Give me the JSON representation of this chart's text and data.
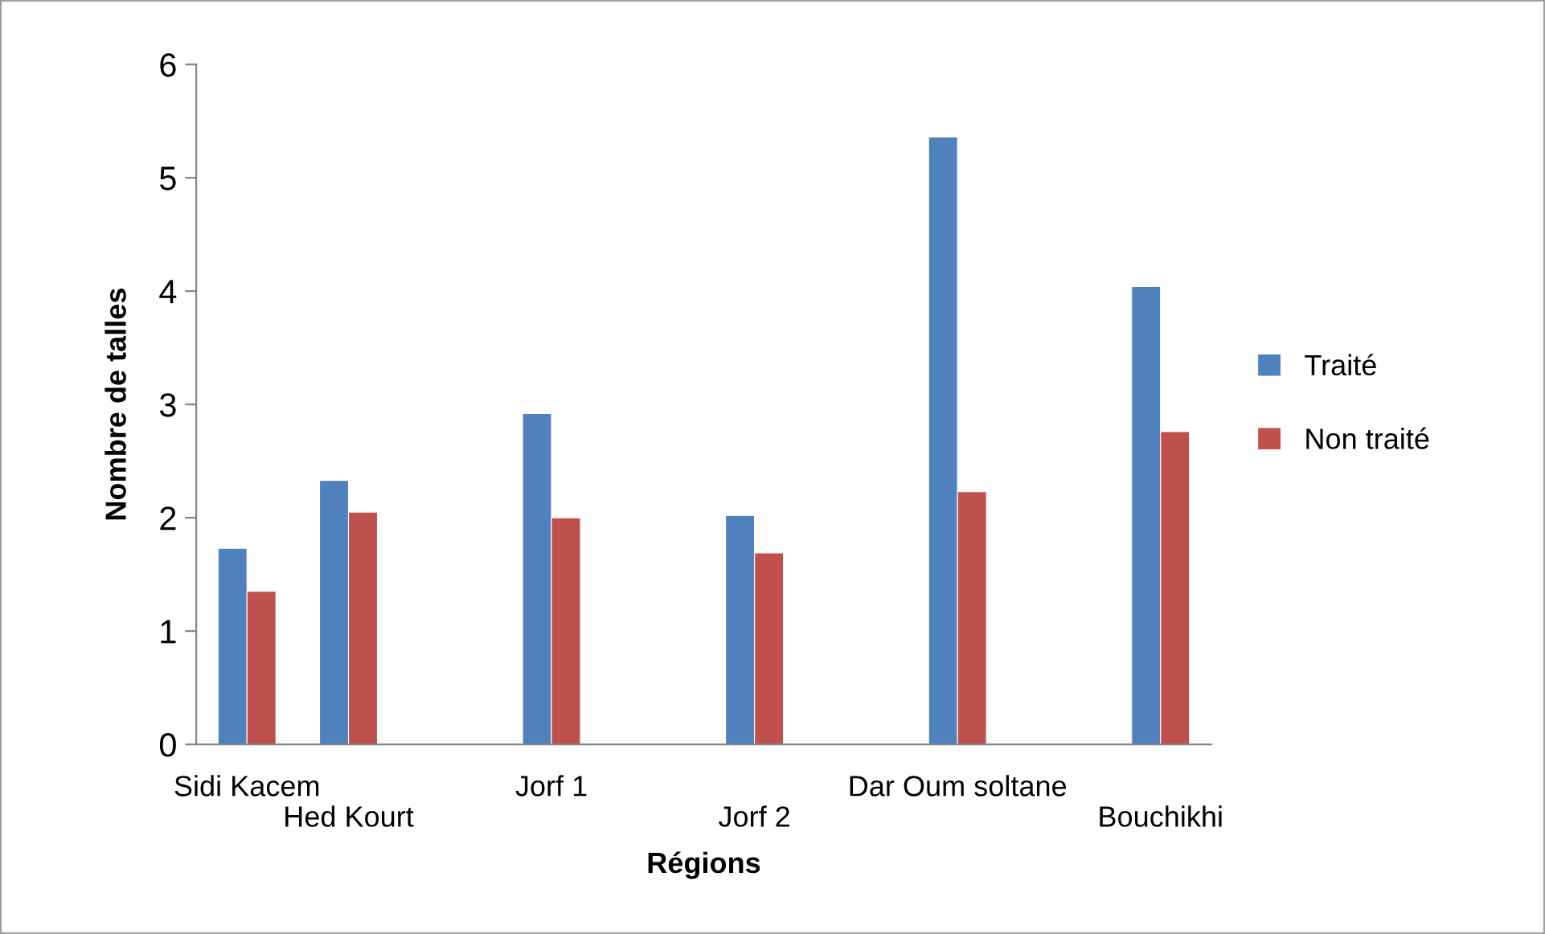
{
  "chart_data": {
    "type": "bar",
    "xlabel": "Régions",
    "ylabel": "Nombre de talles",
    "categories": [
      "Sidi Kacem",
      "Hed Kourt",
      null,
      "Jorf 1",
      null,
      "Jorf 2",
      null,
      "Dar Oum soltane",
      null,
      "Bouchikhi"
    ],
    "series": [
      {
        "name": "Traité",
        "color": "#4f81bd",
        "values": [
          1.73,
          2.33,
          null,
          2.92,
          null,
          2.02,
          null,
          5.36,
          null,
          4.04
        ]
      },
      {
        "name": "Non traité",
        "color": "#c0504d",
        "values": [
          1.35,
          2.05,
          null,
          2.0,
          null,
          1.69,
          null,
          2.23,
          null,
          2.76
        ]
      }
    ],
    "ylim": [
      0,
      6
    ],
    "yticks": [
      0,
      1,
      2,
      3,
      4,
      5,
      6
    ],
    "grid": false,
    "legend": "right"
  }
}
